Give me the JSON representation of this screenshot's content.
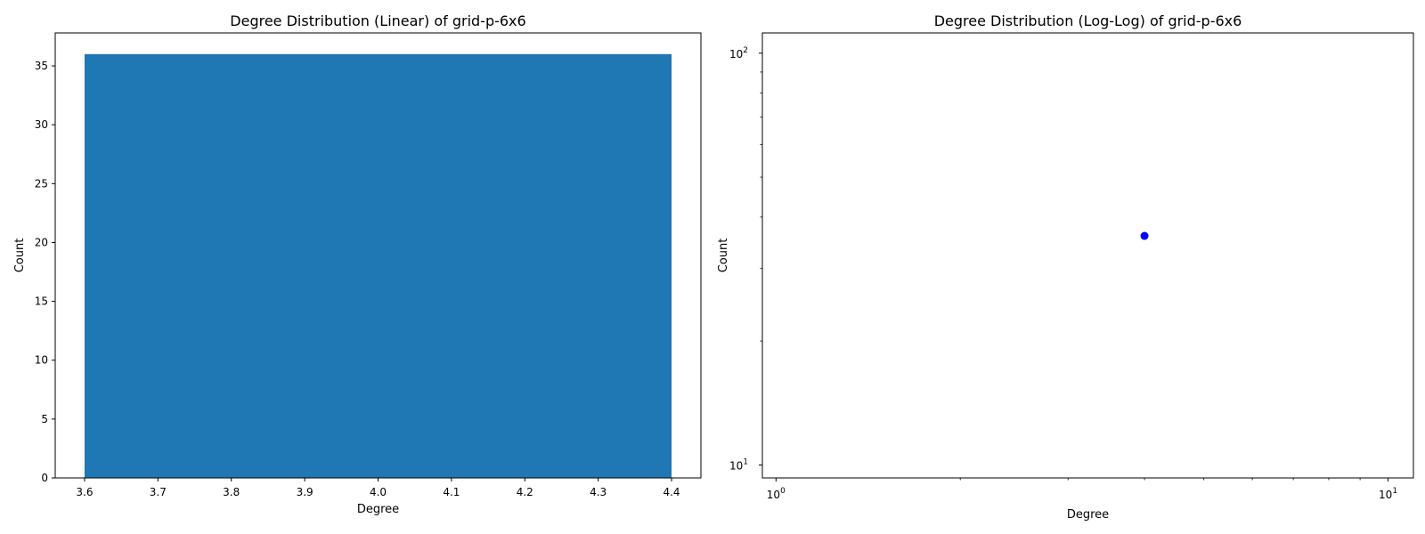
{
  "chart_data": [
    {
      "type": "bar",
      "title": "Degree Distribution (Linear) of grid-p-6x6",
      "xlabel": "Degree",
      "ylabel": "Count",
      "categories": [
        4
      ],
      "values": [
        36
      ],
      "bar_range": [
        3.6,
        4.4
      ],
      "color": "#1f77b4",
      "xlim": [
        3.56,
        4.44
      ],
      "ylim": [
        0,
        37.8
      ],
      "xticks": [
        "3.6",
        "3.7",
        "3.8",
        "3.9",
        "4.0",
        "4.1",
        "4.2",
        "4.3",
        "4.4"
      ],
      "xtick_values": [
        3.6,
        3.7,
        3.8,
        3.9,
        4.0,
        4.1,
        4.2,
        4.3,
        4.4
      ],
      "yticks": [
        "0",
        "5",
        "10",
        "15",
        "20",
        "25",
        "30",
        "35"
      ],
      "ytick_values": [
        0,
        5,
        10,
        15,
        20,
        25,
        30,
        35
      ],
      "grid": false
    },
    {
      "type": "scatter",
      "title": "Degree Distribution (Log-Log) of grid-p-6x6",
      "xlabel": "Degree",
      "ylabel": "Count",
      "x": [
        4
      ],
      "y": [
        36
      ],
      "color": "#0000ff",
      "xscale": "log",
      "yscale": "log",
      "xlim": [
        0.95,
        11
      ],
      "ylim": [
        9.3,
        112
      ],
      "xticks": [
        {
          "base": "10",
          "exp": "0",
          "value": 1
        },
        {
          "base": "10",
          "exp": "1",
          "value": 10
        }
      ],
      "yticks": [
        {
          "base": "10",
          "exp": "1",
          "value": 10
        },
        {
          "base": "10",
          "exp": "2",
          "value": 100
        }
      ],
      "grid": false
    }
  ]
}
